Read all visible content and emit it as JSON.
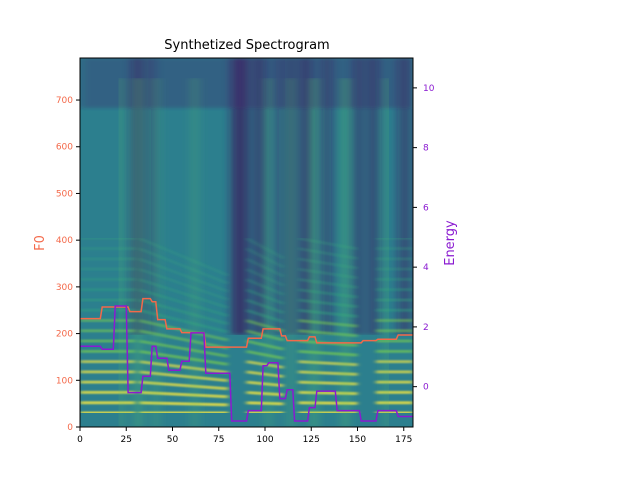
{
  "chart_data": {
    "type": "heatmap",
    "title": "Synthetized Spectrogram",
    "colormap": "viridis",
    "xlabel": "",
    "xlim": [
      0,
      180
    ],
    "x_ticks": [
      0,
      25,
      50,
      75,
      100,
      125,
      150,
      175
    ],
    "y_left": {
      "label": "F0",
      "color": "#f4694a",
      "lim": [
        0,
        790
      ],
      "ticks": [
        0,
        100,
        200,
        300,
        400,
        500,
        600,
        700
      ]
    },
    "y_right": {
      "label": "Energy",
      "color": "#8a1ad1",
      "lim": [
        -1.35,
        11
      ],
      "ticks": [
        0,
        2,
        4,
        6,
        8,
        10
      ]
    },
    "series": [
      {
        "name": "F0",
        "axis": "left",
        "color": "#f4694a",
        "steps": [
          [
            0,
            232
          ],
          [
            11,
            232
          ],
          [
            12,
            257
          ],
          [
            26,
            257
          ],
          [
            27,
            247
          ],
          [
            33,
            247
          ],
          [
            34,
            275
          ],
          [
            38,
            275
          ],
          [
            39,
            268
          ],
          [
            41,
            268
          ],
          [
            42,
            230
          ],
          [
            46,
            230
          ],
          [
            47,
            210
          ],
          [
            54,
            210
          ],
          [
            55,
            202
          ],
          [
            67,
            202
          ],
          [
            68,
            171
          ],
          [
            90,
            171
          ],
          [
            91,
            190
          ],
          [
            98,
            190
          ],
          [
            99,
            210
          ],
          [
            108,
            210
          ],
          [
            109,
            195
          ],
          [
            111,
            195
          ],
          [
            112,
            185
          ],
          [
            123,
            185
          ],
          [
            124,
            193
          ],
          [
            127,
            193
          ],
          [
            128,
            180
          ],
          [
            152,
            180
          ],
          [
            153,
            185
          ],
          [
            160,
            185
          ],
          [
            161,
            188
          ],
          [
            171,
            188
          ],
          [
            172,
            197
          ],
          [
            180,
            197
          ]
        ]
      },
      {
        "name": "Energy",
        "axis": "right",
        "color": "#8a1ad1",
        "steps": [
          [
            0,
            1.35
          ],
          [
            11,
            1.35
          ],
          [
            12,
            1.25
          ],
          [
            18,
            1.25
          ],
          [
            19,
            2.7
          ],
          [
            25,
            2.7
          ],
          [
            26,
            -0.2
          ],
          [
            33,
            -0.2
          ],
          [
            34,
            0.35
          ],
          [
            38,
            0.35
          ],
          [
            39,
            1.35
          ],
          [
            41,
            1.35
          ],
          [
            42,
            0.95
          ],
          [
            47,
            0.95
          ],
          [
            48,
            0.55
          ],
          [
            54,
            0.55
          ],
          [
            55,
            0.85
          ],
          [
            59,
            0.85
          ],
          [
            60,
            1.8
          ],
          [
            67,
            1.8
          ],
          [
            68,
            0.45
          ],
          [
            81,
            0.45
          ],
          [
            82,
            -1.15
          ],
          [
            90,
            -1.15
          ],
          [
            91,
            -0.8
          ],
          [
            98,
            -0.8
          ],
          [
            99,
            0.7
          ],
          [
            101,
            0.7
          ],
          [
            102,
            0.8
          ],
          [
            107,
            0.8
          ],
          [
            108,
            -0.4
          ],
          [
            111,
            -0.4
          ],
          [
            112,
            -0.1
          ],
          [
            115,
            -0.1
          ],
          [
            116,
            -1.15
          ],
          [
            123,
            -1.15
          ],
          [
            124,
            -0.7
          ],
          [
            127,
            -0.7
          ],
          [
            128,
            -0.15
          ],
          [
            138,
            -0.15
          ],
          [
            139,
            -0.8
          ],
          [
            151,
            -0.8
          ],
          [
            152,
            -1.15
          ],
          [
            160,
            -1.15
          ],
          [
            161,
            -0.8
          ],
          [
            171,
            -0.8
          ],
          [
            172,
            -1.0
          ],
          [
            180,
            -1.0
          ]
        ]
      }
    ]
  }
}
